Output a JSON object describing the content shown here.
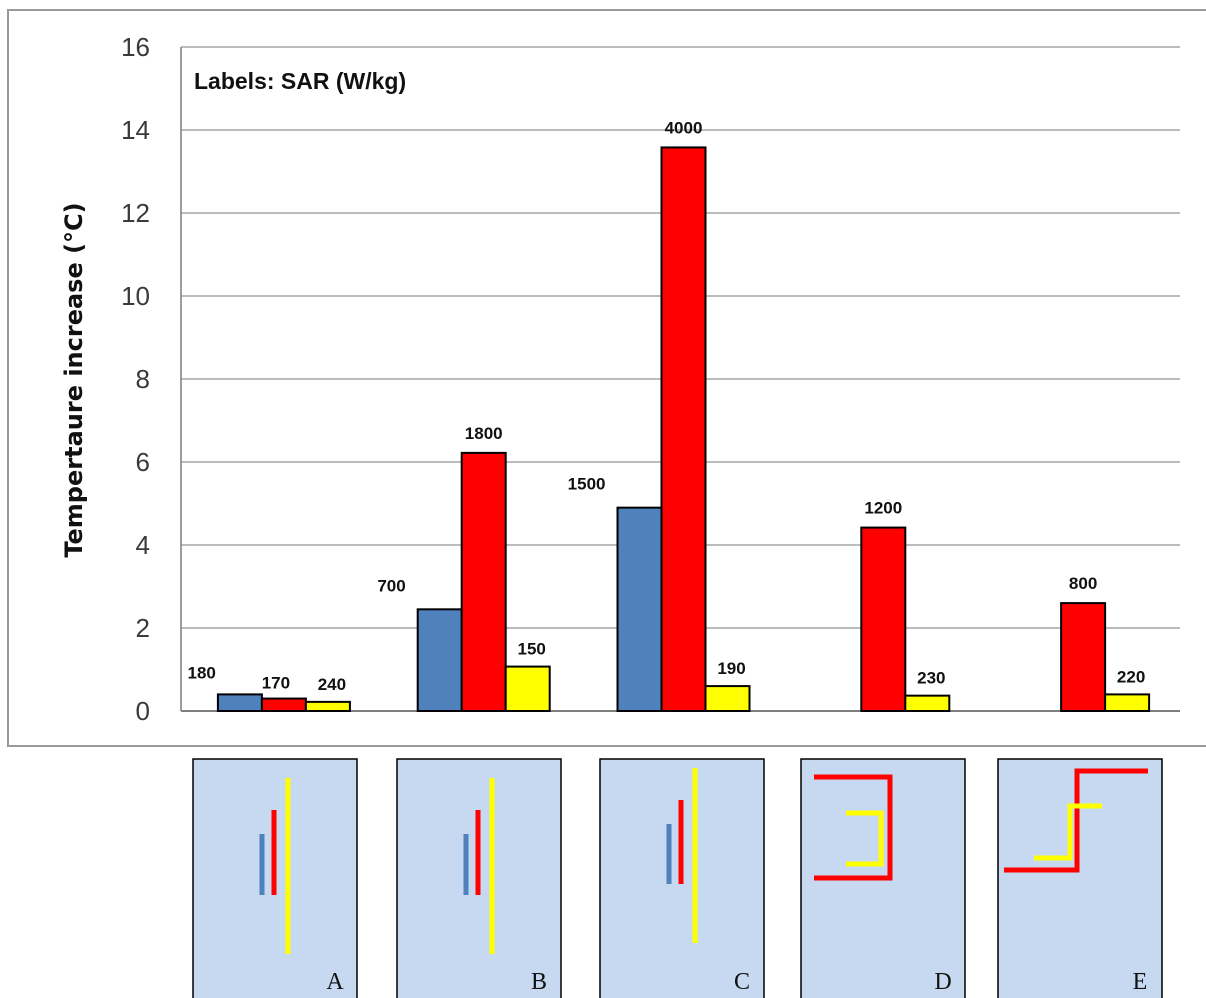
{
  "chart_data": {
    "type": "bar",
    "title": "Labels: SAR (W/kg)",
    "xlabel": "",
    "ylabel": "Tempertaure increase (°C)",
    "ylim": [
      0,
      16
    ],
    "yticks": [
      "0",
      "2",
      "4",
      "6",
      "8",
      "10",
      "12",
      "14",
      "16"
    ],
    "grid": true,
    "categories": [
      "A",
      "B",
      "C",
      "D",
      "E"
    ],
    "series": [
      {
        "color": "#4f81bd",
        "values": [
          0.4,
          2.45,
          4.9,
          null,
          null
        ],
        "labels": [
          "180",
          "700",
          "1500",
          "",
          ""
        ]
      },
      {
        "color": "#ff0000",
        "values": [
          0.3,
          6.22,
          13.58,
          4.42,
          2.6
        ],
        "labels": [
          "170",
          "1800",
          "4000",
          "1200",
          "800"
        ]
      },
      {
        "color": "#ffff00",
        "values": [
          0.22,
          1.07,
          0.6,
          0.37,
          0.4
        ],
        "labels": [
          "240",
          "150",
          "190",
          "230",
          "220"
        ]
      }
    ]
  },
  "panels": [
    {
      "letter": "A",
      "shape": "parallel-lines",
      "lines": [
        "blue",
        "red",
        "yellow"
      ]
    },
    {
      "letter": "B",
      "shape": "parallel-lines",
      "lines": [
        "blue",
        "red",
        "yellow"
      ]
    },
    {
      "letter": "C",
      "shape": "parallel-lines",
      "lines": [
        "blue",
        "red",
        "yellow"
      ]
    },
    {
      "letter": "D",
      "shape": "bracket",
      "lines": [
        "red",
        "yellow"
      ]
    },
    {
      "letter": "E",
      "shape": "step",
      "lines": [
        "red",
        "yellow"
      ]
    }
  ],
  "colors": {
    "panel_bg": "#c6d9f0",
    "blue": "#4f81bd",
    "red": "#ff0000",
    "yellow": "#ffff00"
  }
}
